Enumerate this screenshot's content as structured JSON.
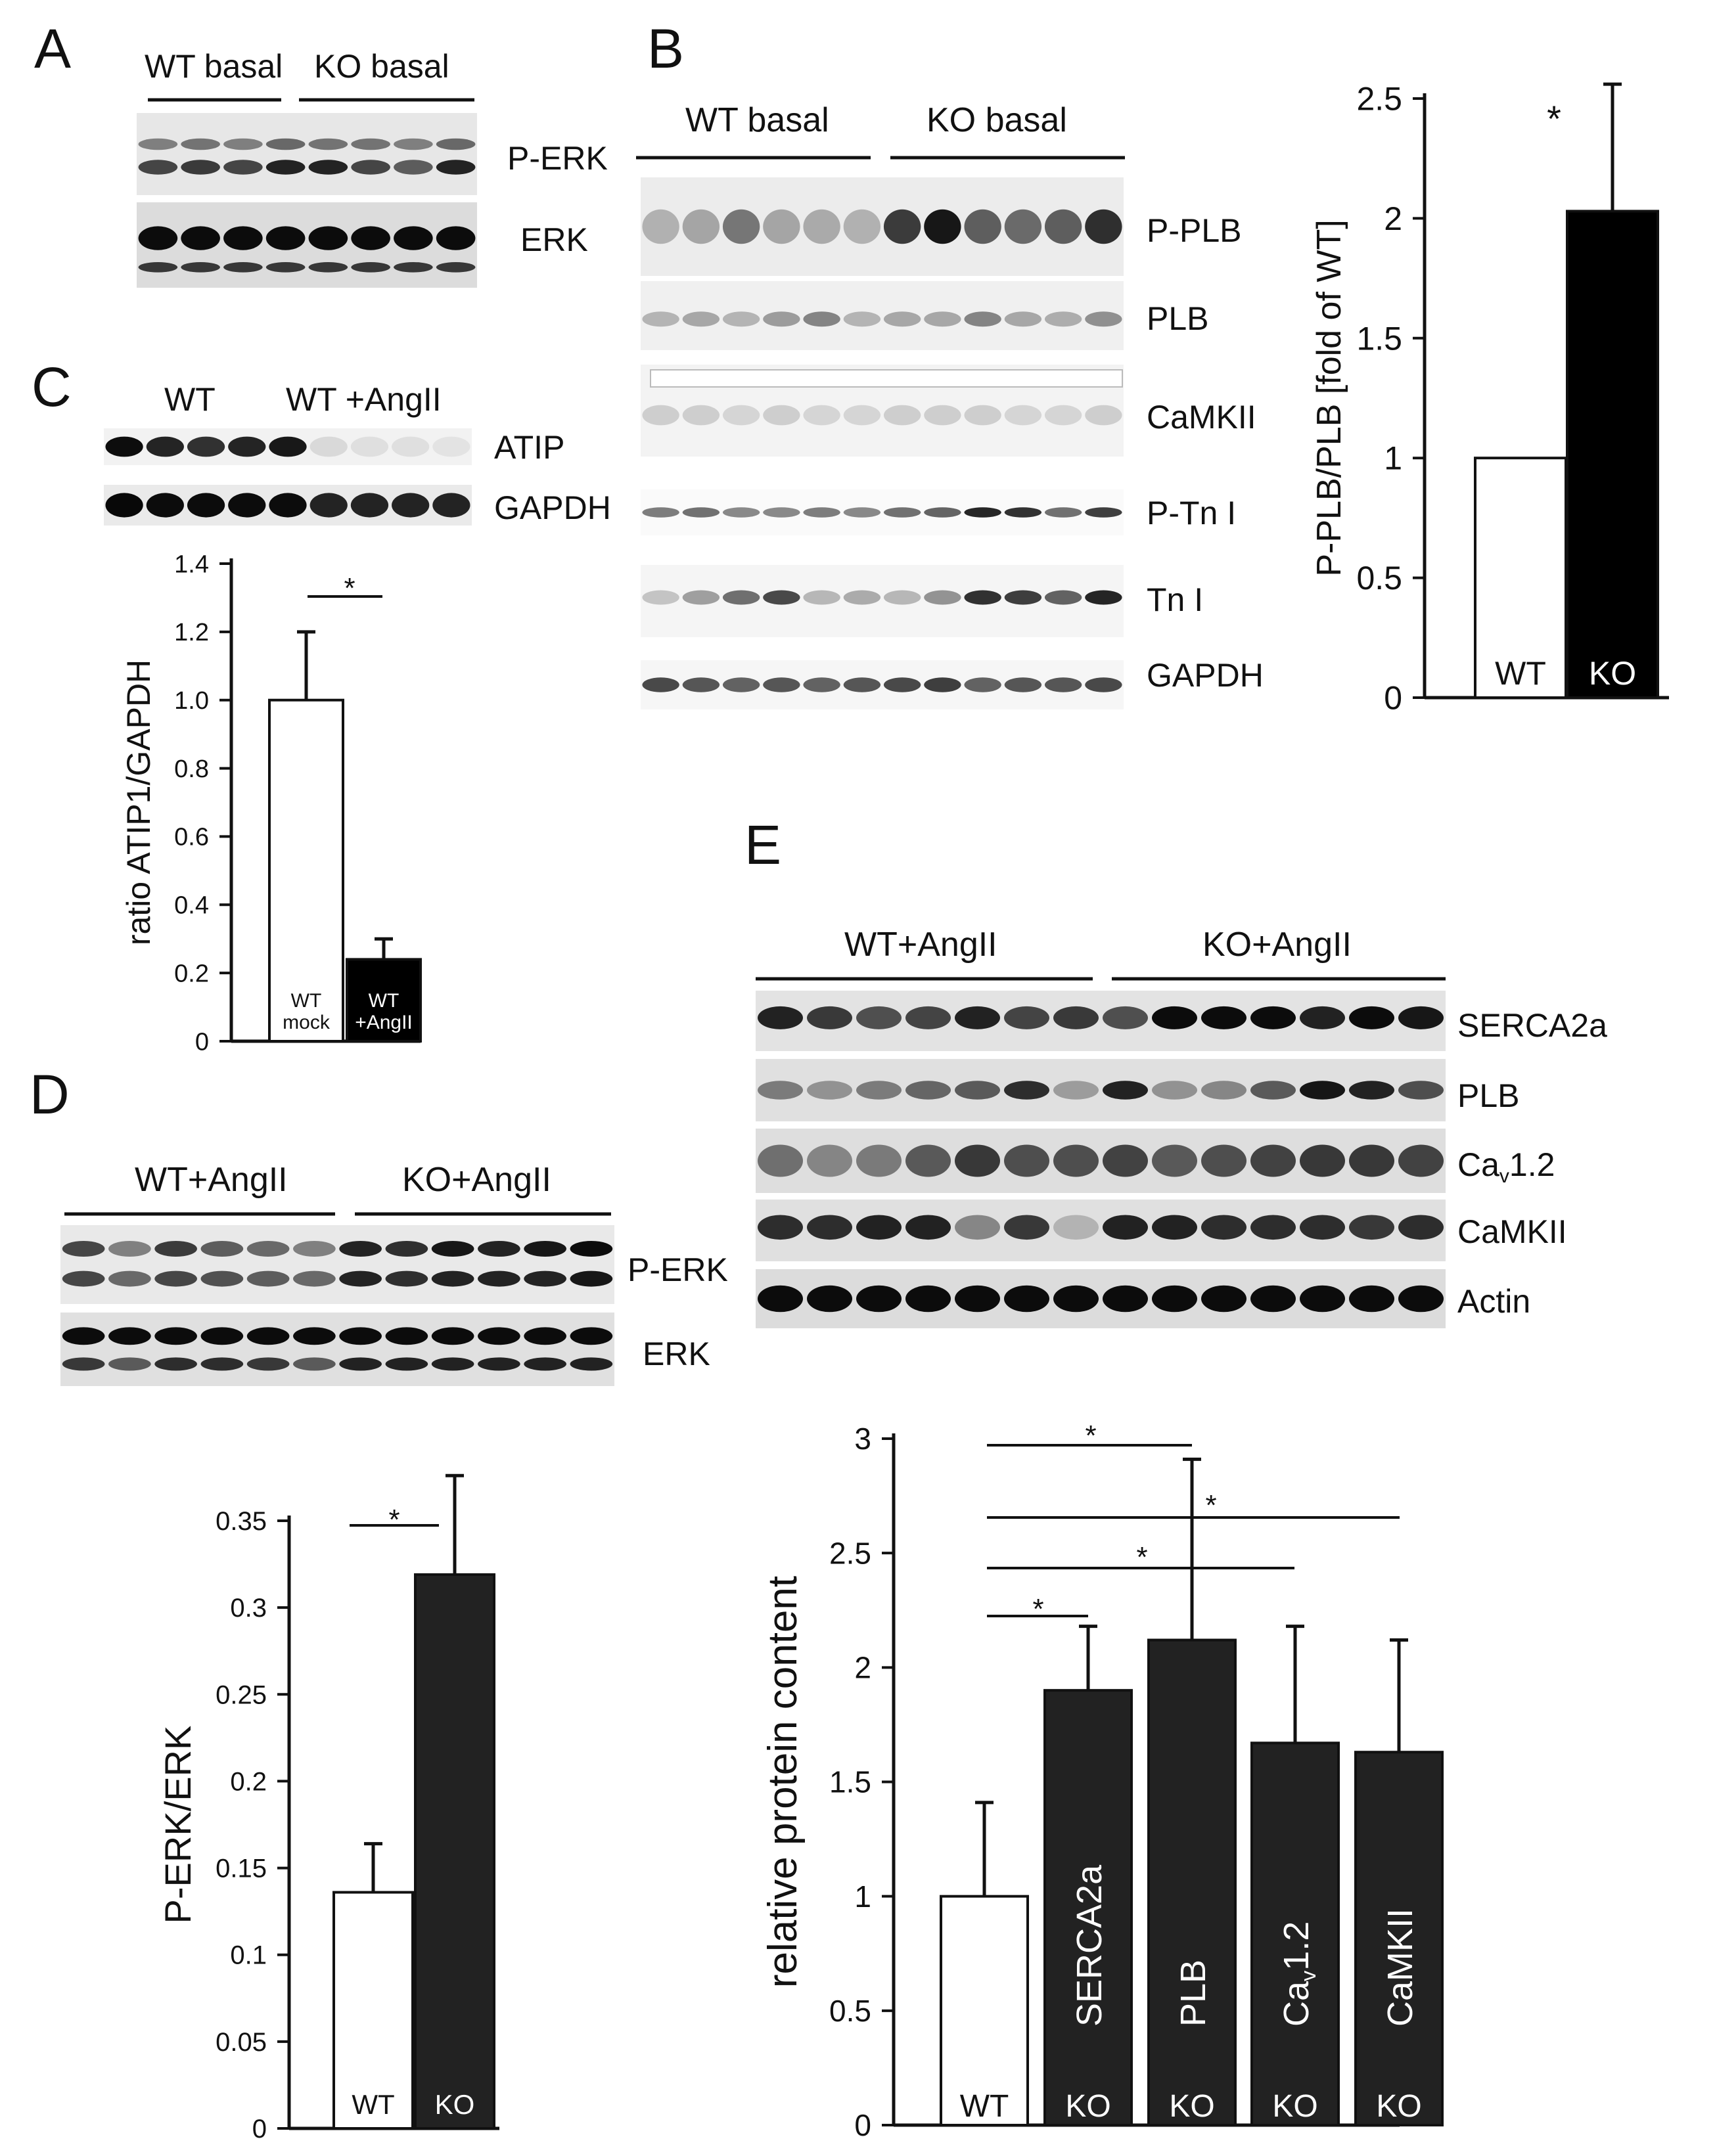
{
  "panels": {
    "A": {
      "letter": "A",
      "groups": [
        "WT basal",
        "KO basal"
      ],
      "blots": [
        "P-ERK",
        "ERK"
      ]
    },
    "B": {
      "letter": "B",
      "groups": [
        "WT basal",
        "KO basal"
      ],
      "blots": [
        "P-PLB",
        "PLB",
        "CaMKII",
        "P-Tn I",
        "Tn I",
        "GAPDH"
      ]
    },
    "C": {
      "letter": "C",
      "groups": [
        "WT",
        "WT +AngII"
      ],
      "blots": [
        "ATIP",
        "GAPDH"
      ]
    },
    "D": {
      "letter": "D",
      "groups": [
        "WT+AngII",
        "KO+AngII"
      ],
      "blots": [
        "P-ERK",
        "ERK"
      ]
    },
    "E": {
      "letter": "E",
      "groups": [
        "WT+AngII",
        "KO+AngII"
      ],
      "blots": [
        "SERCA2a",
        "PLB",
        "Ca_v1.2",
        "CaMKII",
        "Actin"
      ]
    }
  },
  "chart_data": [
    {
      "id": "B",
      "type": "bar",
      "categories": [
        "WT",
        "KO"
      ],
      "values": [
        1.0,
        2.03
      ],
      "errors": [
        0,
        0.53
      ],
      "bar_colors": [
        "#ffffff",
        "#000000"
      ],
      "ylabel": "P-PLB/PLB [fold of WT]",
      "ylim": [
        0,
        2.5
      ],
      "yticks": [
        "0",
        "0.5",
        "1",
        "1.5",
        "2",
        "2.5"
      ],
      "significance": "*"
    },
    {
      "id": "C",
      "type": "bar",
      "categories": [
        "WT mock",
        "WT +AngII"
      ],
      "category_lines": [
        [
          "WT",
          "mock"
        ],
        [
          "WT",
          "+AngII"
        ]
      ],
      "values": [
        1.0,
        0.24
      ],
      "errors": [
        0.2,
        0.06
      ],
      "bar_colors": [
        "#ffffff",
        "#000000"
      ],
      "ylabel": "ratio ATIP1/GAPDH",
      "ylim": [
        0,
        1.4
      ],
      "yticks": [
        "0",
        "0.2",
        "0.4",
        "0.6",
        "0.8",
        "1.0",
        "1.2",
        "1.4"
      ],
      "significance": "*"
    },
    {
      "id": "D",
      "type": "bar",
      "categories": [
        "WT",
        "KO"
      ],
      "values": [
        0.136,
        0.319
      ],
      "errors": [
        0.028,
        0.057
      ],
      "bar_colors": [
        "#ffffff",
        "#222222"
      ],
      "ylabel": "P-ERK/ERK",
      "ylim": [
        0,
        0.35
      ],
      "yticks": [
        "0",
        "0.05",
        "0.1",
        "0.15",
        "0.2",
        "0.25",
        "0.3",
        "0.35"
      ],
      "significance": "*"
    },
    {
      "id": "E",
      "type": "bar",
      "categories": [
        "WT",
        "KO",
        "KO",
        "KO",
        "KO"
      ],
      "bar_labels": [
        "",
        "SERCA2a",
        "PLB",
        "Ca_v1.2",
        "CaMKII"
      ],
      "values": [
        1.0,
        1.9,
        2.12,
        1.67,
        1.63
      ],
      "errors": [
        0.41,
        0.28,
        0.79,
        0.51,
        0.49
      ],
      "bar_colors": [
        "#ffffff",
        "#222222",
        "#222222",
        "#222222",
        "#222222"
      ],
      "ylabel": "relative protein content",
      "ylim": [
        0,
        3
      ],
      "yticks": [
        "0",
        "0.5",
        "1",
        "1.5",
        "2",
        "2.5",
        "3"
      ],
      "significance": [
        "*",
        "*",
        "*",
        "*"
      ]
    }
  ]
}
